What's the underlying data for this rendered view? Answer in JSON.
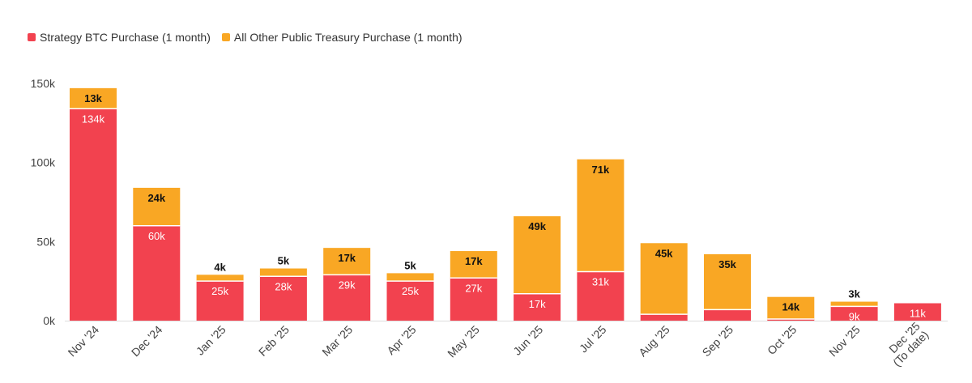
{
  "chart_data": {
    "type": "bar",
    "stacked": true,
    "title": "",
    "xlabel": "",
    "ylabel": "",
    "ylim": [
      0,
      150000
    ],
    "y_ticks": [
      "0k",
      "50k",
      "100k",
      "150k"
    ],
    "y_tick_values": [
      0,
      50000,
      100000,
      150000
    ],
    "categories": [
      [
        "Nov '24"
      ],
      [
        "Dec '24"
      ],
      [
        "Jan '25"
      ],
      [
        "Feb '25"
      ],
      [
        "Mar '25"
      ],
      [
        "Apr '25"
      ],
      [
        "May '25"
      ],
      [
        "Jun '25"
      ],
      [
        "Jul '25"
      ],
      [
        "Aug '25"
      ],
      [
        "Sep '25"
      ],
      [
        "Oct '25"
      ],
      [
        "Nov '25"
      ],
      [
        "Dec '25",
        "(To date)"
      ]
    ],
    "series": [
      {
        "name": "Strategy BTC Purchase (1 month)",
        "color": "#f2424f",
        "values": [
          134000,
          60000,
          25000,
          28000,
          29000,
          25000,
          27000,
          17000,
          31000,
          4000,
          7000,
          1000,
          9000,
          11000
        ],
        "labels": [
          "134k",
          "60k",
          "25k",
          "28k",
          "29k",
          "25k",
          "27k",
          "17k",
          "31k",
          "",
          "",
          "",
          "9k",
          "11k"
        ]
      },
      {
        "name": "All Other Public Treasury Purchase (1 month)",
        "color": "#f9a724",
        "values": [
          13000,
          24000,
          4000,
          5000,
          17000,
          5000,
          17000,
          49000,
          71000,
          45000,
          35000,
          14000,
          3000,
          0
        ],
        "labels": [
          "13k",
          "24k",
          "4k",
          "5k",
          "17k",
          "5k",
          "17k",
          "49k",
          "71k",
          "45k",
          "35k",
          "14k",
          "3k",
          ""
        ]
      }
    ],
    "legend_position": "top-left",
    "grid": false
  }
}
